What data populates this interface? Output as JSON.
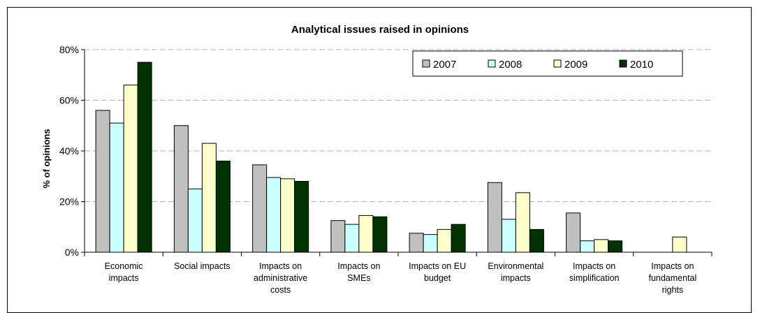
{
  "chart_data": {
    "type": "bar",
    "title": "Analytical issues raised in opinions",
    "xlabel": "",
    "ylabel": "% of opinions",
    "ylim": [
      0,
      80
    ],
    "yticks": [
      "0%",
      "20%",
      "40%",
      "60%",
      "80%"
    ],
    "grid": "horizontal dashed",
    "legend_position": "top-right",
    "categories": [
      [
        "Economic",
        "impacts"
      ],
      [
        "Social impacts"
      ],
      [
        "Impacts on",
        "administrative",
        "costs"
      ],
      [
        "Impacts on",
        "SMEs"
      ],
      [
        "Impacts on EU",
        "budget"
      ],
      [
        "Environmental",
        "impacts"
      ],
      [
        "Impacts on",
        "simplification"
      ],
      [
        "Impacts on",
        "fundamental",
        "rights"
      ]
    ],
    "series": [
      {
        "name": "2007",
        "color": "#c0c0c0",
        "values": [
          56,
          50,
          34.5,
          12.5,
          7.5,
          27.5,
          15.5,
          0
        ]
      },
      {
        "name": "2008",
        "color": "#ccffff",
        "values": [
          51,
          25,
          29.5,
          11,
          7,
          13,
          4.5,
          0
        ]
      },
      {
        "name": "2009",
        "color": "#ffffcc",
        "values": [
          66,
          43,
          29,
          14.5,
          9,
          23.5,
          5,
          6
        ]
      },
      {
        "name": "2010",
        "color": "#003300",
        "values": [
          75,
          36,
          28,
          14,
          11,
          9,
          4.5,
          0
        ]
      }
    ]
  }
}
